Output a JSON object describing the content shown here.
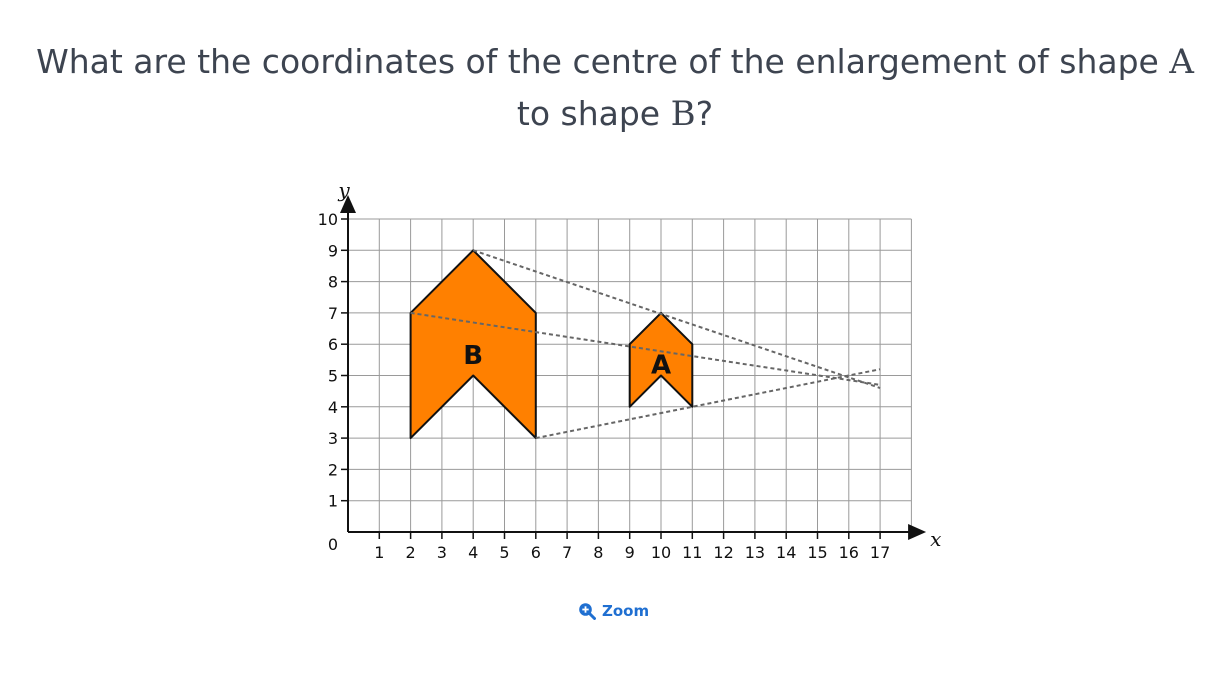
{
  "question": {
    "line1_text": "What are the coordinates of the centre of the enlargement of shape ",
    "line1_math": "A",
    "line2_text_a": "to shape ",
    "line2_math": "B",
    "line2_text_b": "?"
  },
  "diagram": {
    "x_axis_label": "x",
    "y_axis_label": "y",
    "origin_label": "0",
    "x_range": [
      0,
      17
    ],
    "y_range": [
      0,
      10
    ],
    "x_ticks": [
      1,
      2,
      3,
      4,
      5,
      6,
      7,
      8,
      9,
      10,
      11,
      12,
      13,
      14,
      15,
      16,
      17
    ],
    "y_ticks": [
      1,
      2,
      3,
      4,
      5,
      6,
      7,
      8,
      9,
      10
    ],
    "shape_fill": "#ff8000",
    "shapes": [
      {
        "label": "B",
        "label_at": [
          4,
          5.6
        ],
        "points": [
          [
            2,
            3
          ],
          [
            2,
            7
          ],
          [
            4,
            9
          ],
          [
            6,
            7
          ],
          [
            6,
            3
          ],
          [
            4,
            5
          ]
        ]
      },
      {
        "label": "A",
        "label_at": [
          10,
          5.3
        ],
        "points": [
          [
            9,
            4
          ],
          [
            9,
            6
          ],
          [
            10,
            7
          ],
          [
            11,
            6
          ],
          [
            11,
            4
          ],
          [
            10,
            5
          ]
        ]
      }
    ],
    "rays": [
      {
        "from": [
          4,
          9
        ],
        "to": [
          17,
          4.6
        ]
      },
      {
        "from": [
          2,
          7
        ],
        "to": [
          17,
          4.7
        ]
      },
      {
        "from": [
          6,
          3
        ],
        "to": [
          17,
          5.2
        ]
      }
    ]
  },
  "zoom": {
    "label": "Zoom",
    "icon": "zoom-in-icon",
    "color": "#1f6fd1"
  }
}
